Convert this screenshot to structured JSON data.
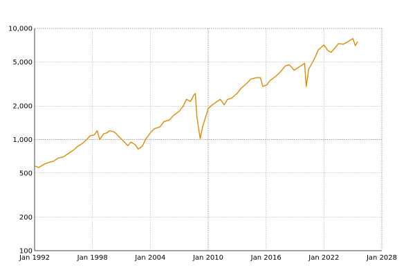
{
  "chart_data": {
    "type": "line",
    "title": "",
    "xlabel": "",
    "ylabel": "",
    "y_scale": "log",
    "grid": true,
    "line_color": "#dd8a00",
    "grid_color": "#999999",
    "xlim": [
      "1992-01",
      "2028-01"
    ],
    "ylim": [
      100,
      10000
    ],
    "x_ticks": [
      {
        "value": "1992-01",
        "label": "Jan 1992"
      },
      {
        "value": "1998-01",
        "label": "Jan 1998"
      },
      {
        "value": "2004-01",
        "label": "Jan 2004"
      },
      {
        "value": "2010-01",
        "label": "Jan 2010"
      },
      {
        "value": "2016-01",
        "label": "Jan 2016"
      },
      {
        "value": "2022-01",
        "label": "Jan 2022"
      },
      {
        "value": "2028-01",
        "label": "Jan 2028"
      }
    ],
    "y_ticks": [
      {
        "value": 100,
        "label": "100"
      },
      {
        "value": 200,
        "label": "200"
      },
      {
        "value": 500,
        "label": "500"
      },
      {
        "value": 1000,
        "label": "1,000"
      },
      {
        "value": 2000,
        "label": "2,000"
      },
      {
        "value": 5000,
        "label": "5,000"
      },
      {
        "value": 10000,
        "label": "10,000"
      }
    ],
    "series": [
      {
        "x": [
          "1992-01",
          "1992-06",
          "1993-01",
          "1993-06",
          "1994-01",
          "1994-06",
          "1995-01",
          "1995-06",
          "1996-01",
          "1996-06",
          "1997-01",
          "1997-06",
          "1997-10",
          "1998-03",
          "1998-07",
          "1998-10",
          "1999-03",
          "1999-07",
          "1999-10",
          "2000-03",
          "2000-06",
          "2000-10",
          "2001-03",
          "2001-09",
          "2002-01",
          "2002-06",
          "2002-10",
          "2003-03",
          "2003-07",
          "2004-01",
          "2004-06",
          "2005-01",
          "2005-06",
          "2006-01",
          "2006-06",
          "2007-01",
          "2007-06",
          "2007-10",
          "2008-03",
          "2008-07",
          "2008-09",
          "2008-11",
          "2009-03",
          "2009-06",
          "2010-01",
          "2010-06",
          "2011-04",
          "2011-09",
          "2012-01",
          "2012-06",
          "2013-01",
          "2013-06",
          "2014-01",
          "2014-06",
          "2015-01",
          "2015-06",
          "2015-09",
          "2016-02",
          "2016-06",
          "2017-01",
          "2017-06",
          "2018-01",
          "2018-06",
          "2018-12",
          "2019-06",
          "2020-01",
          "2020-03",
          "2020-06",
          "2021-01",
          "2021-06",
          "2022-01",
          "2022-06",
          "2022-10",
          "2023-03",
          "2023-07",
          "2024-01",
          "2024-07",
          "2025-01",
          "2025-04",
          "2025-07"
        ],
        "values": [
          580,
          560,
          600,
          620,
          640,
          680,
          700,
          740,
          800,
          860,
          930,
          1000,
          1080,
          1100,
          1200,
          1000,
          1130,
          1150,
          1200,
          1180,
          1140,
          1060,
          980,
          880,
          950,
          900,
          820,
          870,
          1000,
          1150,
          1250,
          1300,
          1450,
          1500,
          1650,
          1800,
          2000,
          2300,
          2200,
          2500,
          2600,
          1600,
          1020,
          1300,
          1900,
          2050,
          2300,
          2050,
          2300,
          2350,
          2600,
          2900,
          3200,
          3500,
          3600,
          3600,
          3000,
          3100,
          3400,
          3700,
          4000,
          4600,
          4700,
          4200,
          4500,
          4850,
          3000,
          4300,
          5300,
          6400,
          7100,
          6300,
          6100,
          6700,
          7300,
          7200,
          7600,
          8100,
          7000,
          7600
        ]
      }
    ]
  }
}
